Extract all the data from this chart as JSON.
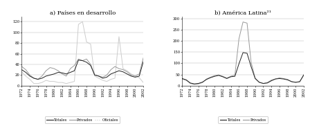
{
  "title_a": "a) Países en desarrollo",
  "title_b": "b) América Latina²¹",
  "years": [
    1972,
    1973,
    1974,
    1975,
    1976,
    1977,
    1978,
    1979,
    1980,
    1981,
    1982,
    1983,
    1984,
    1985,
    1986,
    1987,
    1988,
    1989,
    1990,
    1991,
    1992,
    1993,
    1994,
    1995,
    1996,
    1997,
    1998,
    1999,
    2000,
    2001,
    2002
  ],
  "a_totales": [
    30,
    25,
    18,
    14,
    12,
    14,
    18,
    20,
    22,
    25,
    24,
    22,
    25,
    28,
    48,
    47,
    44,
    38,
    20,
    18,
    14,
    16,
    22,
    25,
    28,
    26,
    22,
    18,
    16,
    18,
    45
  ],
  "a_privados": [
    36,
    30,
    20,
    14,
    12,
    18,
    28,
    34,
    32,
    28,
    22,
    18,
    32,
    38,
    50,
    47,
    50,
    40,
    20,
    18,
    16,
    20,
    30,
    36,
    32,
    30,
    26,
    20,
    18,
    22,
    52
  ],
  "a_oficiales": [
    26,
    18,
    12,
    4,
    4,
    6,
    10,
    8,
    8,
    6,
    6,
    4,
    6,
    8,
    115,
    120,
    82,
    78,
    18,
    14,
    10,
    8,
    12,
    14,
    92,
    32,
    28,
    22,
    18,
    15,
    6
  ],
  "b_totales": [
    32,
    26,
    12,
    8,
    10,
    16,
    28,
    36,
    42,
    46,
    40,
    32,
    40,
    42,
    98,
    148,
    145,
    85,
    32,
    15,
    10,
    12,
    22,
    30,
    32,
    30,
    26,
    18,
    15,
    18,
    48
  ],
  "b_privados": [
    30,
    24,
    10,
    6,
    8,
    14,
    30,
    38,
    45,
    48,
    42,
    34,
    42,
    48,
    210,
    285,
    280,
    105,
    34,
    16,
    10,
    14,
    25,
    30,
    35,
    32,
    28,
    18,
    15,
    18,
    50
  ],
  "ylim_a": [
    0,
    130
  ],
  "ylim_b": [
    0,
    310
  ],
  "yticks_a": [
    0,
    20,
    40,
    60,
    80,
    100,
    120
  ],
  "yticks_b": [
    0,
    50,
    100,
    150,
    200,
    250,
    300
  ],
  "color_totales": "#222222",
  "color_privados": "#999999",
  "color_oficiales": "#cccccc",
  "bg_color": "#ffffff"
}
